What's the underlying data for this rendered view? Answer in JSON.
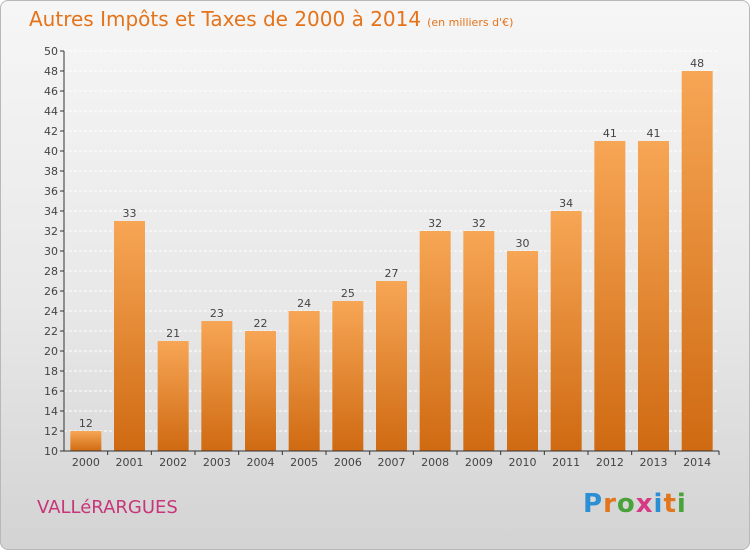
{
  "header": {
    "title": "Autres Impôts et Taxes de 2000 à 2014",
    "subtitle": "(en milliers d'€)"
  },
  "footer": {
    "commune": "VALLéRARGUES",
    "brand_letters": [
      "P",
      "r",
      "o",
      "x",
      "i",
      "t",
      "i"
    ],
    "brand_colors": [
      "#2a8fd4",
      "#e2761c",
      "#4aa33a",
      "#d63a84",
      "#2a8fd4",
      "#e2761c",
      "#4aa33a"
    ]
  },
  "colors": {
    "bar_light": "#f7a655",
    "bar_dark": "#cf6a12",
    "grid": "#ffffff",
    "axis": "#333333"
  },
  "chart_data": {
    "type": "bar",
    "title": "Autres Impôts et Taxes de 2000 à 2014",
    "subtitle": "(en milliers d'€)",
    "categories": [
      "2000",
      "2001",
      "2002",
      "2003",
      "2004",
      "2005",
      "2006",
      "2007",
      "2008",
      "2009",
      "2010",
      "2011",
      "2012",
      "2013",
      "2014"
    ],
    "values": [
      12,
      33,
      21,
      23,
      22,
      24,
      25,
      27,
      32,
      32,
      30,
      34,
      41,
      41,
      48
    ],
    "ylim": [
      10,
      50
    ],
    "ytick_step": 2,
    "grid": true,
    "data_labels": true
  }
}
